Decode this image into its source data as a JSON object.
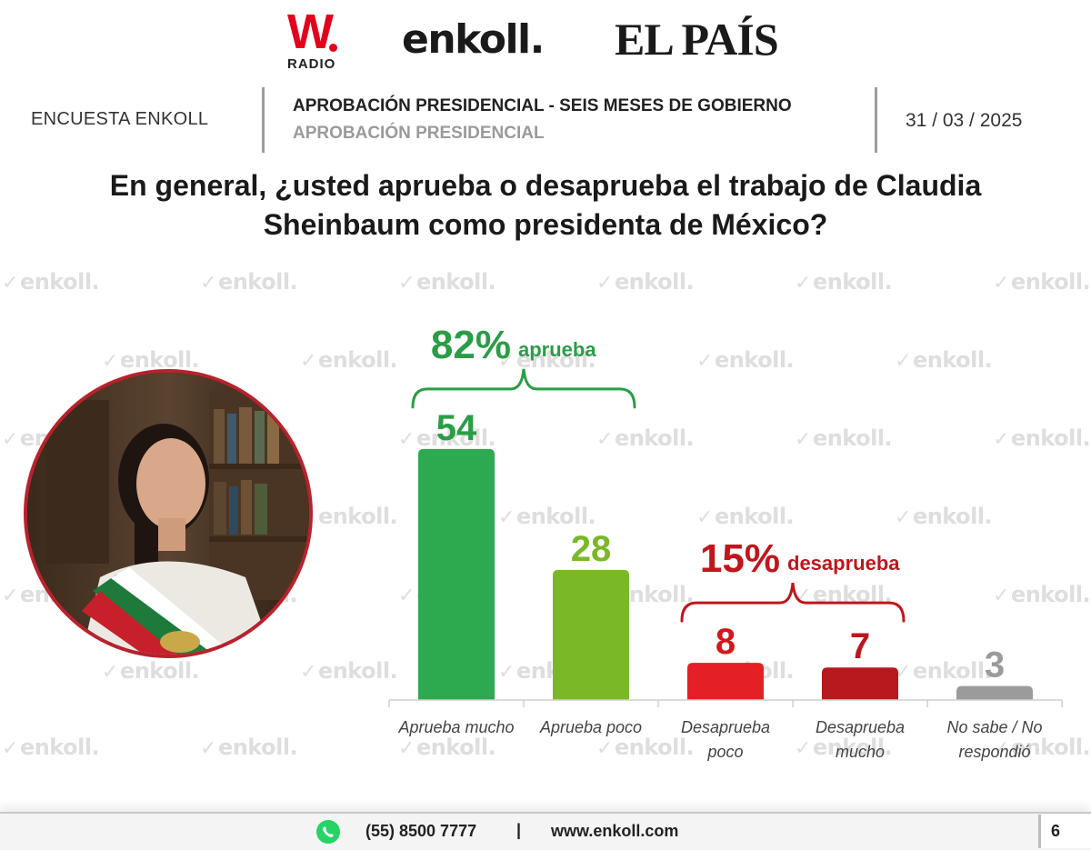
{
  "logos": {
    "w_letter": "W",
    "w_sub": "RADIO",
    "enkoll": "enkoll.",
    "elpais": "EL PAÍS"
  },
  "header": {
    "survey": "ENCUESTA ENKOLL",
    "title": "APROBACIÓN PRESIDENCIAL - SEIS MESES DE GOBIERNO",
    "subtitle": "APROBACIÓN PRESIDENCIAL",
    "date": "31 / 03 / 2025"
  },
  "question": {
    "line1": "En general, ¿usted aprueba o desaprueba el trabajo de Claudia",
    "line2": "Sheinbaum como presidenta de México?"
  },
  "watermark_text": "enkoll.",
  "chart_data": {
    "type": "bar",
    "categories": [
      [
        "Aprueba mucho"
      ],
      [
        "Aprueba poco"
      ],
      [
        "Desaprueba",
        "poco"
      ],
      [
        "Desaprueba",
        "mucho"
      ],
      [
        "No sabe / No",
        "respondió"
      ]
    ],
    "values": [
      54,
      28,
      8,
      7,
      3
    ],
    "colors": [
      "#2daa4f",
      "#7ab828",
      "#e41f26",
      "#b8191e",
      "#9b9b9b"
    ],
    "value_colors": [
      "#2a9d46",
      "#7ab828",
      "#d4171d",
      "#b8191e",
      "#9b9b9b"
    ],
    "groups": [
      {
        "percent": "82%",
        "label": "aprueba",
        "color": "#2a9d46",
        "bars": [
          0,
          1
        ]
      },
      {
        "percent": "15%",
        "label": "desaprueba",
        "color": "#c0161c",
        "bars": [
          2,
          3
        ]
      }
    ],
    "ylim": [
      0,
      60
    ],
    "grid": false
  },
  "footer": {
    "whatsapp_icon": "whatsapp-icon",
    "phone": "(55) 8500 7777",
    "separator": "|",
    "website": "www.enkoll.com",
    "page": "6"
  }
}
